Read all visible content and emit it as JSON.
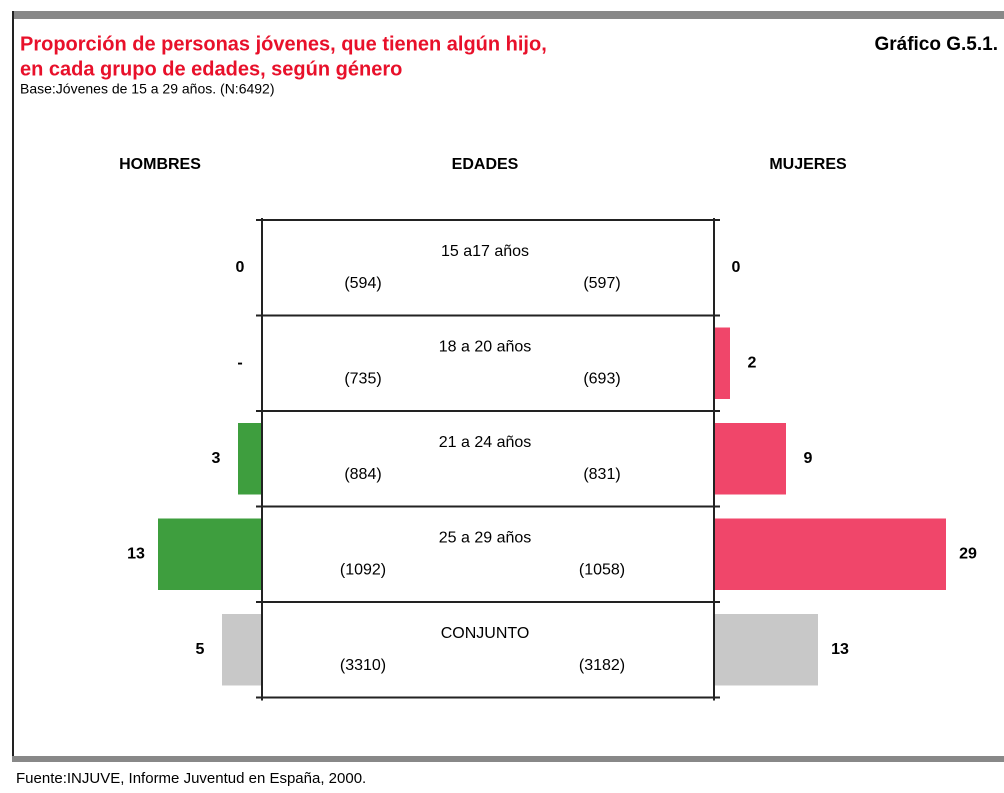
{
  "chart_data": {
    "type": "pyramid",
    "title": [
      "Proporción de personas jóvenes, que tienen algún hijo,",
      "en cada grupo de edades, según género"
    ],
    "figure": "Gráfico G.5.1.",
    "subtitle": "Base:Jóvenes de 15 a 29 años. (N:6492)",
    "category_label": "EDADES",
    "source": "Fuente:INJUVE, Informe Juventud en España, 2000.",
    "categories": [
      "15 a17 años",
      "18 a 20 años",
      "21 a 24 años",
      "25 a 29 años",
      "CONJUNTO"
    ],
    "series": [
      {
        "name": "HOMBRES",
        "values": [
          0,
          null,
          3,
          13,
          5
        ],
        "value_labels": [
          "0",
          "-",
          "3",
          "13",
          "5"
        ],
        "colors": [
          "#3e9e3e",
          "#3e9e3e",
          "#3e9e3e",
          "#3e9e3e",
          "#c8c8c8"
        ],
        "counts": [
          "(594)",
          "(735)",
          "(884)",
          "(1092)",
          "(3310)"
        ]
      },
      {
        "name": "MUJERES",
        "values": [
          0,
          2,
          9,
          29,
          13
        ],
        "value_labels": [
          "0",
          "2",
          "9",
          "29",
          "13"
        ],
        "colors": [
          "#f0466a",
          "#f0466a",
          "#f0466a",
          "#f0466a",
          "#c8c8c8"
        ],
        "counts": [
          "(597)",
          "(693)",
          "(831)",
          "(1058)",
          "(3182)"
        ]
      }
    ]
  }
}
